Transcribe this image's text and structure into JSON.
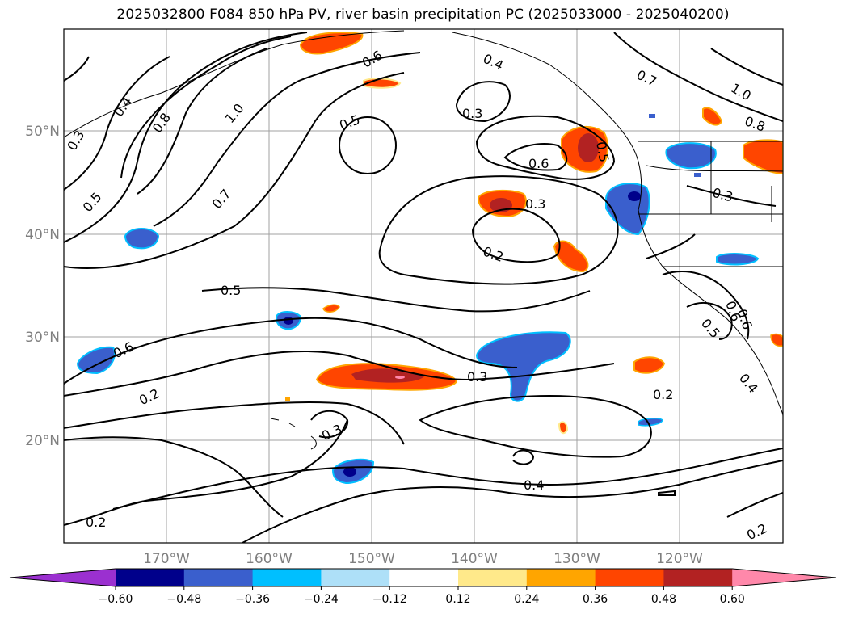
{
  "title": "2025032800 F084 850 hPa PV, river basin precipitation PC (2025033000 - 2025040200)",
  "lat_labels": [
    "50°N",
    "40°N",
    "30°N",
    "20°N"
  ],
  "lon_labels": [
    "170°W",
    "160°W",
    "150°W",
    "140°W",
    "130°W",
    "120°W"
  ],
  "contour_labels": [
    "0.3",
    "0.4",
    "0.8",
    "1.0",
    "0.6",
    "0.4",
    "0.7",
    "1.0",
    "0.8",
    "0.5",
    "0.7",
    "0.5",
    "0.3",
    "0.6",
    "0.5",
    "0.3",
    "0.2",
    "0.5",
    "0.6",
    "0.2",
    "0.3",
    "0.3",
    "0.4",
    "0.2",
    "0.2",
    "0.2",
    "0.6",
    "0.6",
    "0.3",
    "0.5",
    "0.4"
  ],
  "colorbar": {
    "colors": [
      "#9b30d0",
      "#00008b",
      "#3a5fcd",
      "#00bfff",
      "#aee0f8",
      "#ffffff",
      "#ffe98a",
      "#ffa500",
      "#ff4500",
      "#b22222",
      "#ff88aa"
    ],
    "tick_labels": [
      "−0.60",
      "−0.48",
      "−0.36",
      "−0.24",
      "−0.12",
      "0.12",
      "0.24",
      "0.36",
      "0.48",
      "0.60"
    ]
  }
}
